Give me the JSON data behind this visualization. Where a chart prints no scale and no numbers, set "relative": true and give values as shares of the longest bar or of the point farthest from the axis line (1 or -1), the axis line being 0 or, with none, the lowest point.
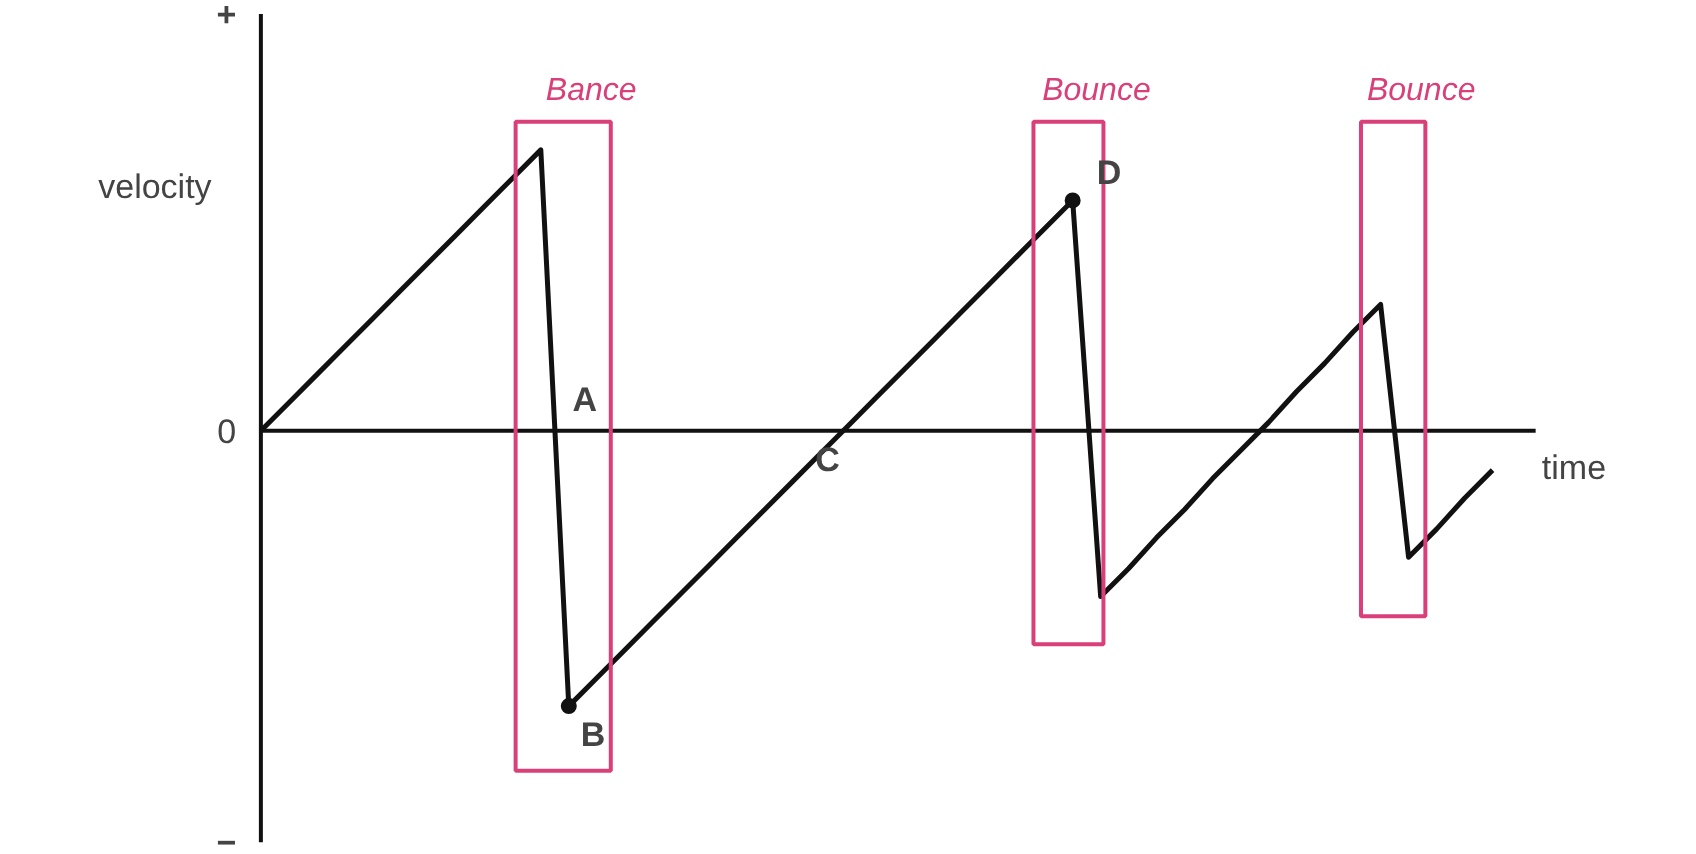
{
  "chart_data": {
    "type": "line",
    "relative": true,
    "xlabel": "time",
    "ylabel": "velocity",
    "categories": [
      null,
      null,
      null,
      null,
      null,
      null,
      null,
      null,
      null,
      null,
      null,
      null,
      null,
      null,
      null,
      null,
      null,
      null,
      null,
      null,
      null,
      null,
      null,
      null,
      null,
      null,
      null,
      null,
      null,
      null,
      null,
      null,
      null,
      null,
      null,
      null,
      null,
      null,
      null,
      null,
      null,
      null,
      null,
      null,
      null
    ],
    "series": [
      {
        "color": "#111111",
        "values": [
          0,
          0.1,
          0.2,
          0.3,
          0.4,
          0.5,
          0.6,
          0.7,
          0.8,
          0.9,
          1,
          -0.98,
          -0.88,
          -0.78,
          -0.68,
          -0.58,
          -0.48,
          -0.38,
          -0.28,
          -0.18,
          -0.08,
          0.02,
          0.12,
          0.22,
          0.32,
          0.42,
          0.52,
          0.62,
          0.72,
          0.82,
          -0.59,
          -0.49,
          -0.38,
          -0.28,
          -0.17,
          -0.07,
          0.03,
          0.14,
          0.24,
          0.35,
          0.45,
          -0.45,
          -0.35,
          -0.24,
          -0.14
        ]
      }
    ],
    "marker": "none",
    "line_style": "solid",
    "annotations": [
      "+",
      "0",
      "−",
      "A",
      "B",
      "C",
      "D",
      "Bance",
      "Bounce",
      "Bounce"
    ]
  }
}
